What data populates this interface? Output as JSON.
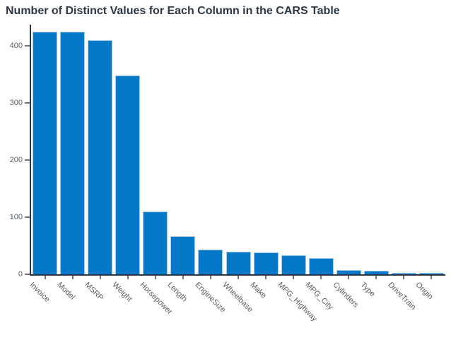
{
  "chart_data": {
    "type": "bar",
    "title": "Number of Distinct Values for Each Column in the CARS Table",
    "categories": [
      "Invoice",
      "Model",
      "MSRP",
      "Weight",
      "Horsepower",
      "Length",
      "EngineSize",
      "Wheelbase",
      "Make",
      "MPG_Highway",
      "MPG_City",
      "Cylinders",
      "Type",
      "DriveTrain",
      "Origin"
    ],
    "values": [
      425,
      425,
      410,
      348,
      110,
      67,
      43,
      40,
      38,
      33,
      28,
      7,
      6,
      3,
      3
    ],
    "xlabel": "",
    "ylabel": "",
    "yticks": [
      0,
      100,
      200,
      300,
      400
    ],
    "ylim": [
      0,
      437
    ],
    "grid": false,
    "legend": "none",
    "colors": {
      "bar_fill": "#0578c8",
      "bar_edge": "#a3cbea",
      "axis_line": "#2b3440",
      "tick_mark": "#6e7781",
      "tick_label": "#595f66",
      "title": "#2e3743",
      "background": "#ffffff"
    }
  }
}
